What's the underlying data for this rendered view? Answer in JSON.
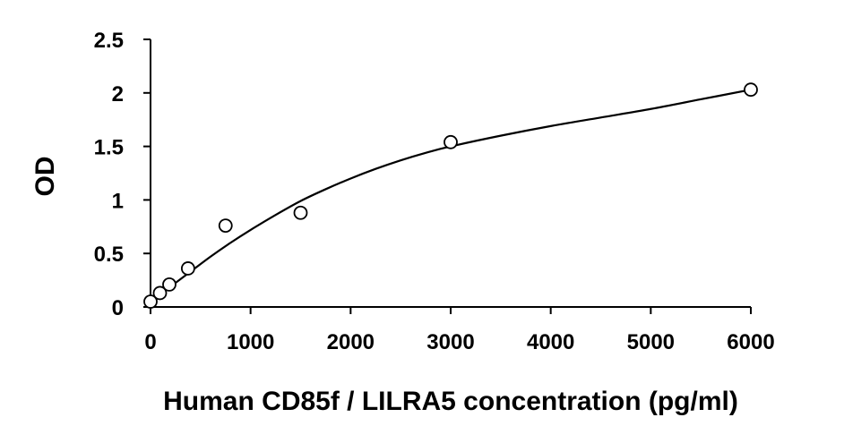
{
  "chart_data": {
    "type": "scatter",
    "title": "",
    "xlabel": "Human CD85f / LILRA5 concentration (pg/ml)",
    "ylabel": "OD",
    "xlim": [
      0,
      6000
    ],
    "ylim": [
      0,
      2.5
    ],
    "x_ticks": [
      0,
      1000,
      2000,
      3000,
      4000,
      5000,
      6000
    ],
    "y_ticks": [
      0,
      0.5,
      1,
      1.5,
      2,
      2.5
    ],
    "x_tick_labels": [
      "0",
      "1000",
      "2000",
      "3000",
      "4000",
      "5000",
      "6000"
    ],
    "y_tick_labels": [
      "0",
      "0.5",
      "1",
      "1.5",
      "2",
      "2.5"
    ],
    "grid": false,
    "legend": "none",
    "series": [
      {
        "marker": "open-circle",
        "x": [
          0,
          94,
          188,
          375,
          750,
          1500,
          3000,
          6000
        ],
        "y": [
          0.05,
          0.13,
          0.21,
          0.36,
          0.76,
          0.88,
          1.54,
          2.03
        ]
      }
    ],
    "fit_curve": {
      "style": "smooth-line",
      "x": [
        0,
        100,
        200,
        400,
        600,
        800,
        1000,
        1250,
        1500,
        1750,
        2000,
        2250,
        2500,
        2750,
        3000,
        3500,
        4000,
        4500,
        5000,
        5500,
        6000
      ],
      "y": [
        0.05,
        0.12,
        0.19,
        0.33,
        0.47,
        0.6,
        0.72,
        0.86,
        0.99,
        1.1,
        1.2,
        1.29,
        1.37,
        1.44,
        1.5,
        1.6,
        1.69,
        1.77,
        1.85,
        1.94,
        2.03
      ]
    }
  }
}
